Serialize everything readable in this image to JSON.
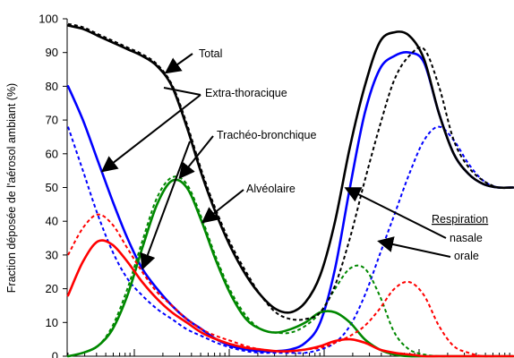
{
  "chart_data": {
    "type": "line",
    "title": "",
    "ylabel": "Fraction déposée de l'aérosol ambiant (%)",
    "xlabel": "",
    "x_scale": "log",
    "ylim": [
      0,
      100
    ],
    "yticks": [
      0,
      10,
      20,
      30,
      40,
      50,
      60,
      70,
      80,
      90,
      100
    ],
    "colors": {
      "total": "#000000",
      "extra_thoracique": "#0000ff",
      "tracheo_bronchique": "#008800",
      "alveolaire": "#ff0000"
    },
    "series": [
      {
        "name": "Total",
        "color": "#000000",
        "modes": [
          {
            "mode": "nasale",
            "values": [
              98,
              97,
              95,
              93,
              91,
              89,
              86,
              80,
              68,
              54,
              42,
              32,
              24,
              18,
              14,
              13,
              16,
              24,
              40,
              62,
              80,
              93,
              96,
              95,
              88,
              72,
              60,
              54,
              51,
              50,
              50
            ]
          },
          {
            "mode": "orale",
            "values": [
              98.5,
              97.5,
              95.5,
              93.5,
              91.5,
              89.5,
              86.5,
              80.5,
              69,
              55,
              43,
              33,
              25,
              18,
              13,
              11,
              11,
              13,
              21,
              35,
              52,
              68,
              82,
              89,
              91,
              80,
              64,
              56,
              52,
              50,
              50
            ]
          }
        ]
      },
      {
        "name": "Extra-thoracique",
        "color": "#0000ff",
        "modes": [
          {
            "mode": "nasale",
            "values": [
              80,
              70,
              58,
              46,
              35,
              26,
              20,
              15,
              11,
              8,
              5,
              3,
              2,
              1.5,
              1.5,
              2,
              4,
              10,
              26,
              50,
              72,
              85,
              89,
              90,
              87,
              72,
              60,
              54,
              51,
              50,
              50
            ]
          },
          {
            "mode": "orale",
            "values": [
              68,
              55,
              42,
              31,
              23,
              18,
              14,
              11,
              8,
              6,
              4,
              2.5,
              1.5,
              1,
              1,
              1,
              1,
              2,
              4,
              9,
              18,
              30,
              42,
              54,
              64,
              68,
              64,
              57,
              52,
              50,
              50
            ]
          }
        ]
      },
      {
        "name": "Trachéo-bronchique",
        "color": "#008800",
        "modes": [
          {
            "mode": "nasale",
            "values": [
              0,
              1,
              3,
              8,
              18,
              32,
              45,
              52,
              50,
              40,
              28,
              18,
              11,
              8,
              7,
              8,
              10,
              13,
              13,
              10,
              5,
              2,
              0.5,
              0,
              0,
              0,
              0,
              0,
              0,
              0,
              0
            ]
          },
          {
            "mode": "orale",
            "values": [
              0,
              1,
              3,
              9,
              20,
              34,
              47,
              53,
              51,
              41,
              29,
              19,
              12,
              8,
              7,
              7,
              9,
              13,
              20,
              26,
              26,
              18,
              7,
              2,
              0.5,
              0,
              0,
              0,
              0,
              0,
              0
            ]
          }
        ]
      },
      {
        "name": "Alvéolaire",
        "color": "#ff0000",
        "modes": [
          {
            "mode": "nasale",
            "values": [
              18,
              28,
              34,
              33,
              28,
              22,
              17,
              13,
              10,
              7,
              5,
              3.5,
              2.5,
              2,
              1.5,
              1.5,
              2,
              3,
              4.5,
              5,
              4,
              2,
              1,
              0.5,
              0,
              0,
              0,
              0,
              0,
              0,
              0
            ]
          },
          {
            "mode": "orale",
            "values": [
              30,
              38,
              42,
              39,
              32,
              25,
              19,
              15,
              11,
              8,
              6,
              4.5,
              3,
              2,
              1.5,
              1.5,
              2,
              2.5,
              4,
              6,
              9,
              14,
              20,
              22,
              18,
              9,
              3,
              1,
              0,
              0,
              0
            ]
          }
        ]
      }
    ],
    "annotations": [
      "Total",
      "Extra-thoracique",
      "Trachéo-bronchique",
      "Alvéolaire"
    ],
    "legend": {
      "title": "Respiration",
      "items": [
        {
          "label": "nasale",
          "style": "solid"
        },
        {
          "label": "orale",
          "style": "dotted"
        }
      ]
    }
  }
}
